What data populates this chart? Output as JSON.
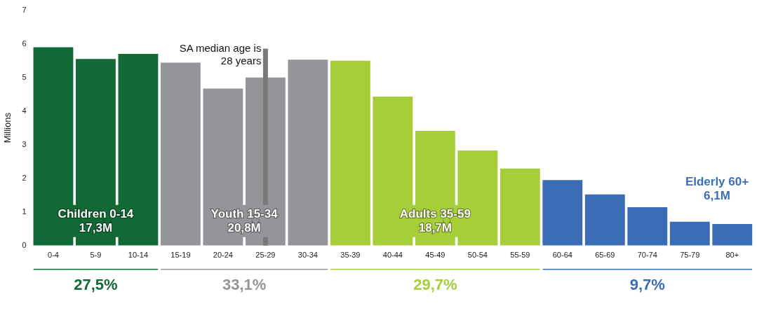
{
  "chart_data": {
    "type": "bar",
    "ylabel": "Millions",
    "categories": [
      "0-4",
      "5-9",
      "10-14",
      "15-19",
      "20-24",
      "25-29",
      "30-34",
      "35-39",
      "40-44",
      "45-49",
      "50-54",
      "55-59",
      "60-64",
      "65-69",
      "70-74",
      "75-79",
      "80+"
    ],
    "series": [
      {
        "name": "Children 0-14",
        "color": "#116936",
        "values": [
          5.9,
          5.55,
          5.7,
          null,
          null,
          null,
          null,
          null,
          null,
          null,
          null,
          null,
          null,
          null,
          null,
          null,
          null
        ]
      },
      {
        "name": "Youth 15-34",
        "color": "#939598",
        "values": [
          null,
          null,
          null,
          5.44,
          4.67,
          5.0,
          5.53,
          null,
          null,
          null,
          null,
          null,
          null,
          null,
          null,
          null,
          null
        ]
      },
      {
        "name": "Adults 35-59",
        "color": "#a6ce39",
        "values": [
          null,
          null,
          null,
          null,
          null,
          null,
          null,
          5.5,
          4.43,
          3.41,
          2.83,
          2.29,
          null,
          null,
          null,
          null,
          null
        ]
      },
      {
        "name": "Elderly 60+",
        "color": "#3a6db5",
        "values": [
          null,
          null,
          null,
          null,
          null,
          null,
          null,
          null,
          null,
          null,
          null,
          null,
          1.95,
          1.52,
          1.14,
          0.71,
          0.64
        ]
      }
    ],
    "annotations": [
      "17,3M",
      "27,5%",
      "20,8M",
      "33,1%",
      "18,7M",
      "29,7%",
      "6,1M",
      "9,7%"
    ],
    "ref_lines": [
      {
        "axis": "x",
        "value": "25-29",
        "label": "SA median age is 28 years",
        "color": "#7a7a7a"
      }
    ],
    "ylim": [
      0,
      7
    ],
    "yticks": [
      0,
      1,
      2,
      3,
      4,
      5,
      6,
      7
    ],
    "grid": false,
    "legend": false
  }
}
